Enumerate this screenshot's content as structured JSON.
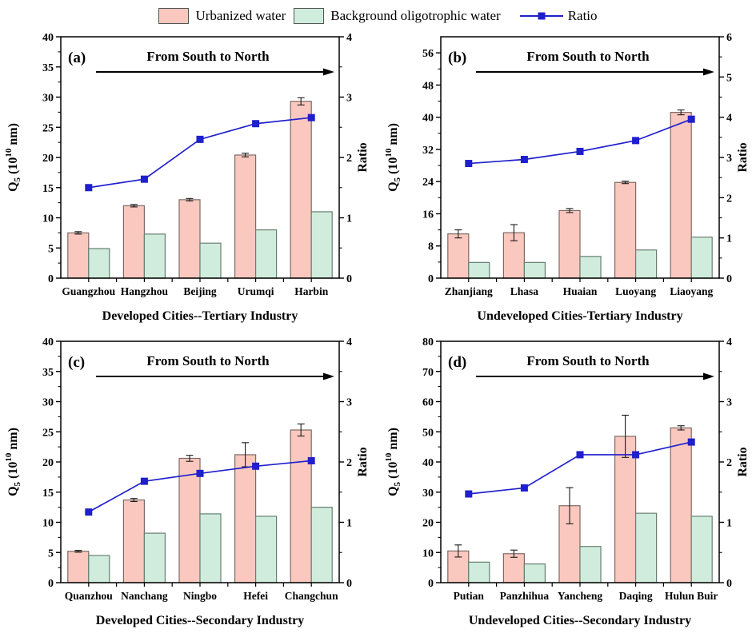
{
  "legend": {
    "urbanized": "Urbanized water",
    "background": "Background oligotrophic water",
    "ratio": "Ratio"
  },
  "colors": {
    "urbanized_fill": "#fac8be",
    "urbanized_stroke": "#7d6a66",
    "background_fill": "#d0ecdc",
    "background_stroke": "#687f72",
    "ratio": "#1f1fcd",
    "error": "#1a1a1a",
    "axis": "#000000"
  },
  "ylabel_parts": {
    "pre": "Q",
    "sub": "5",
    "mid": " (10",
    "sup": "10",
    "post": " nm)"
  },
  "right_axis_label": "Ratio",
  "arrow_text": "From South to North",
  "chart_data": [
    {
      "type": "bar+line",
      "panel": "(a)",
      "xlabel": "Developed Cities--Tertiary Industry",
      "categories": [
        "Guangzhou",
        "Hangzhou",
        "Beijing",
        "Urumqi",
        "Harbin"
      ],
      "left_axis": {
        "min": 0,
        "max": 40,
        "major": 5,
        "minor": 2.5
      },
      "right_axis": {
        "min": 0,
        "max": 4,
        "major": 1,
        "minor": 0.5
      },
      "series": [
        {
          "name": "Urbanized water",
          "values": [
            7.5,
            12.0,
            13.0,
            20.4,
            29.3
          ],
          "errors": [
            0.2,
            0.2,
            0.2,
            0.3,
            0.6
          ]
        },
        {
          "name": "Background oligotrophic water",
          "values": [
            4.9,
            7.3,
            5.8,
            8.0,
            11.0
          ]
        },
        {
          "name": "Ratio",
          "axis": "right",
          "values": [
            1.5,
            1.64,
            2.3,
            2.56,
            2.66
          ]
        }
      ]
    },
    {
      "type": "bar+line",
      "panel": "(b)",
      "xlabel": "Undeveloped Cities-Tertiary Industry",
      "categories": [
        "Zhanjiang",
        "Lhasa",
        "Huaian",
        "Luoyang",
        "Liaoyang"
      ],
      "left_axis": {
        "min": 0,
        "max": 60,
        "major": 8,
        "minor": 4
      },
      "right_axis": {
        "min": 0,
        "max": 6,
        "major": 1,
        "minor": 0.5
      },
      "series": [
        {
          "name": "Urbanized water",
          "values": [
            11.0,
            11.3,
            16.8,
            23.8,
            41.2
          ],
          "errors": [
            1.0,
            2.0,
            0.5,
            0.3,
            0.6
          ]
        },
        {
          "name": "Background oligotrophic water",
          "values": [
            3.9,
            3.9,
            5.4,
            7.0,
            10.2
          ]
        },
        {
          "name": "Ratio",
          "axis": "right",
          "values": [
            2.85,
            2.95,
            3.15,
            3.42,
            3.95
          ]
        }
      ]
    },
    {
      "type": "bar+line",
      "panel": "(c)",
      "xlabel": "Developed Cities--Secondary Industry",
      "categories": [
        "Quanzhou",
        "Nanchang",
        "Ningbo",
        "Hefei",
        "Changchun"
      ],
      "left_axis": {
        "min": 0,
        "max": 40,
        "major": 5,
        "minor": 2.5
      },
      "right_axis": {
        "min": 0,
        "max": 4,
        "major": 1,
        "minor": 0.5
      },
      "series": [
        {
          "name": "Urbanized water",
          "values": [
            5.2,
            13.7,
            20.6,
            21.2,
            25.3
          ],
          "errors": [
            0.15,
            0.25,
            0.5,
            2.0,
            1.0
          ]
        },
        {
          "name": "Background oligotrophic water",
          "values": [
            4.5,
            8.2,
            11.4,
            11.0,
            12.5
          ]
        },
        {
          "name": "Ratio",
          "axis": "right",
          "values": [
            1.17,
            1.68,
            1.81,
            1.93,
            2.02
          ]
        }
      ]
    },
    {
      "type": "bar+line",
      "panel": "(d)",
      "xlabel": "Undeveloped Cities--Secondary Industry",
      "categories": [
        "Putian",
        "Panzhihua",
        "Yancheng",
        "Daqing",
        "Hulun Buir"
      ],
      "left_axis": {
        "min": 0,
        "max": 80,
        "major": 10,
        "minor": 5
      },
      "right_axis": {
        "min": 0,
        "max": 4,
        "major": 1,
        "minor": 0.5
      },
      "series": [
        {
          "name": "Urbanized water",
          "values": [
            10.5,
            9.6,
            25.5,
            48.5,
            51.3
          ],
          "errors": [
            2.0,
            1.2,
            6.0,
            7.0,
            0.7
          ]
        },
        {
          "name": "Background oligotrophic water",
          "values": [
            6.8,
            6.2,
            12.0,
            23.0,
            22.0
          ]
        },
        {
          "name": "Ratio",
          "axis": "right",
          "values": [
            1.47,
            1.57,
            2.12,
            2.12,
            2.33
          ]
        }
      ]
    }
  ]
}
